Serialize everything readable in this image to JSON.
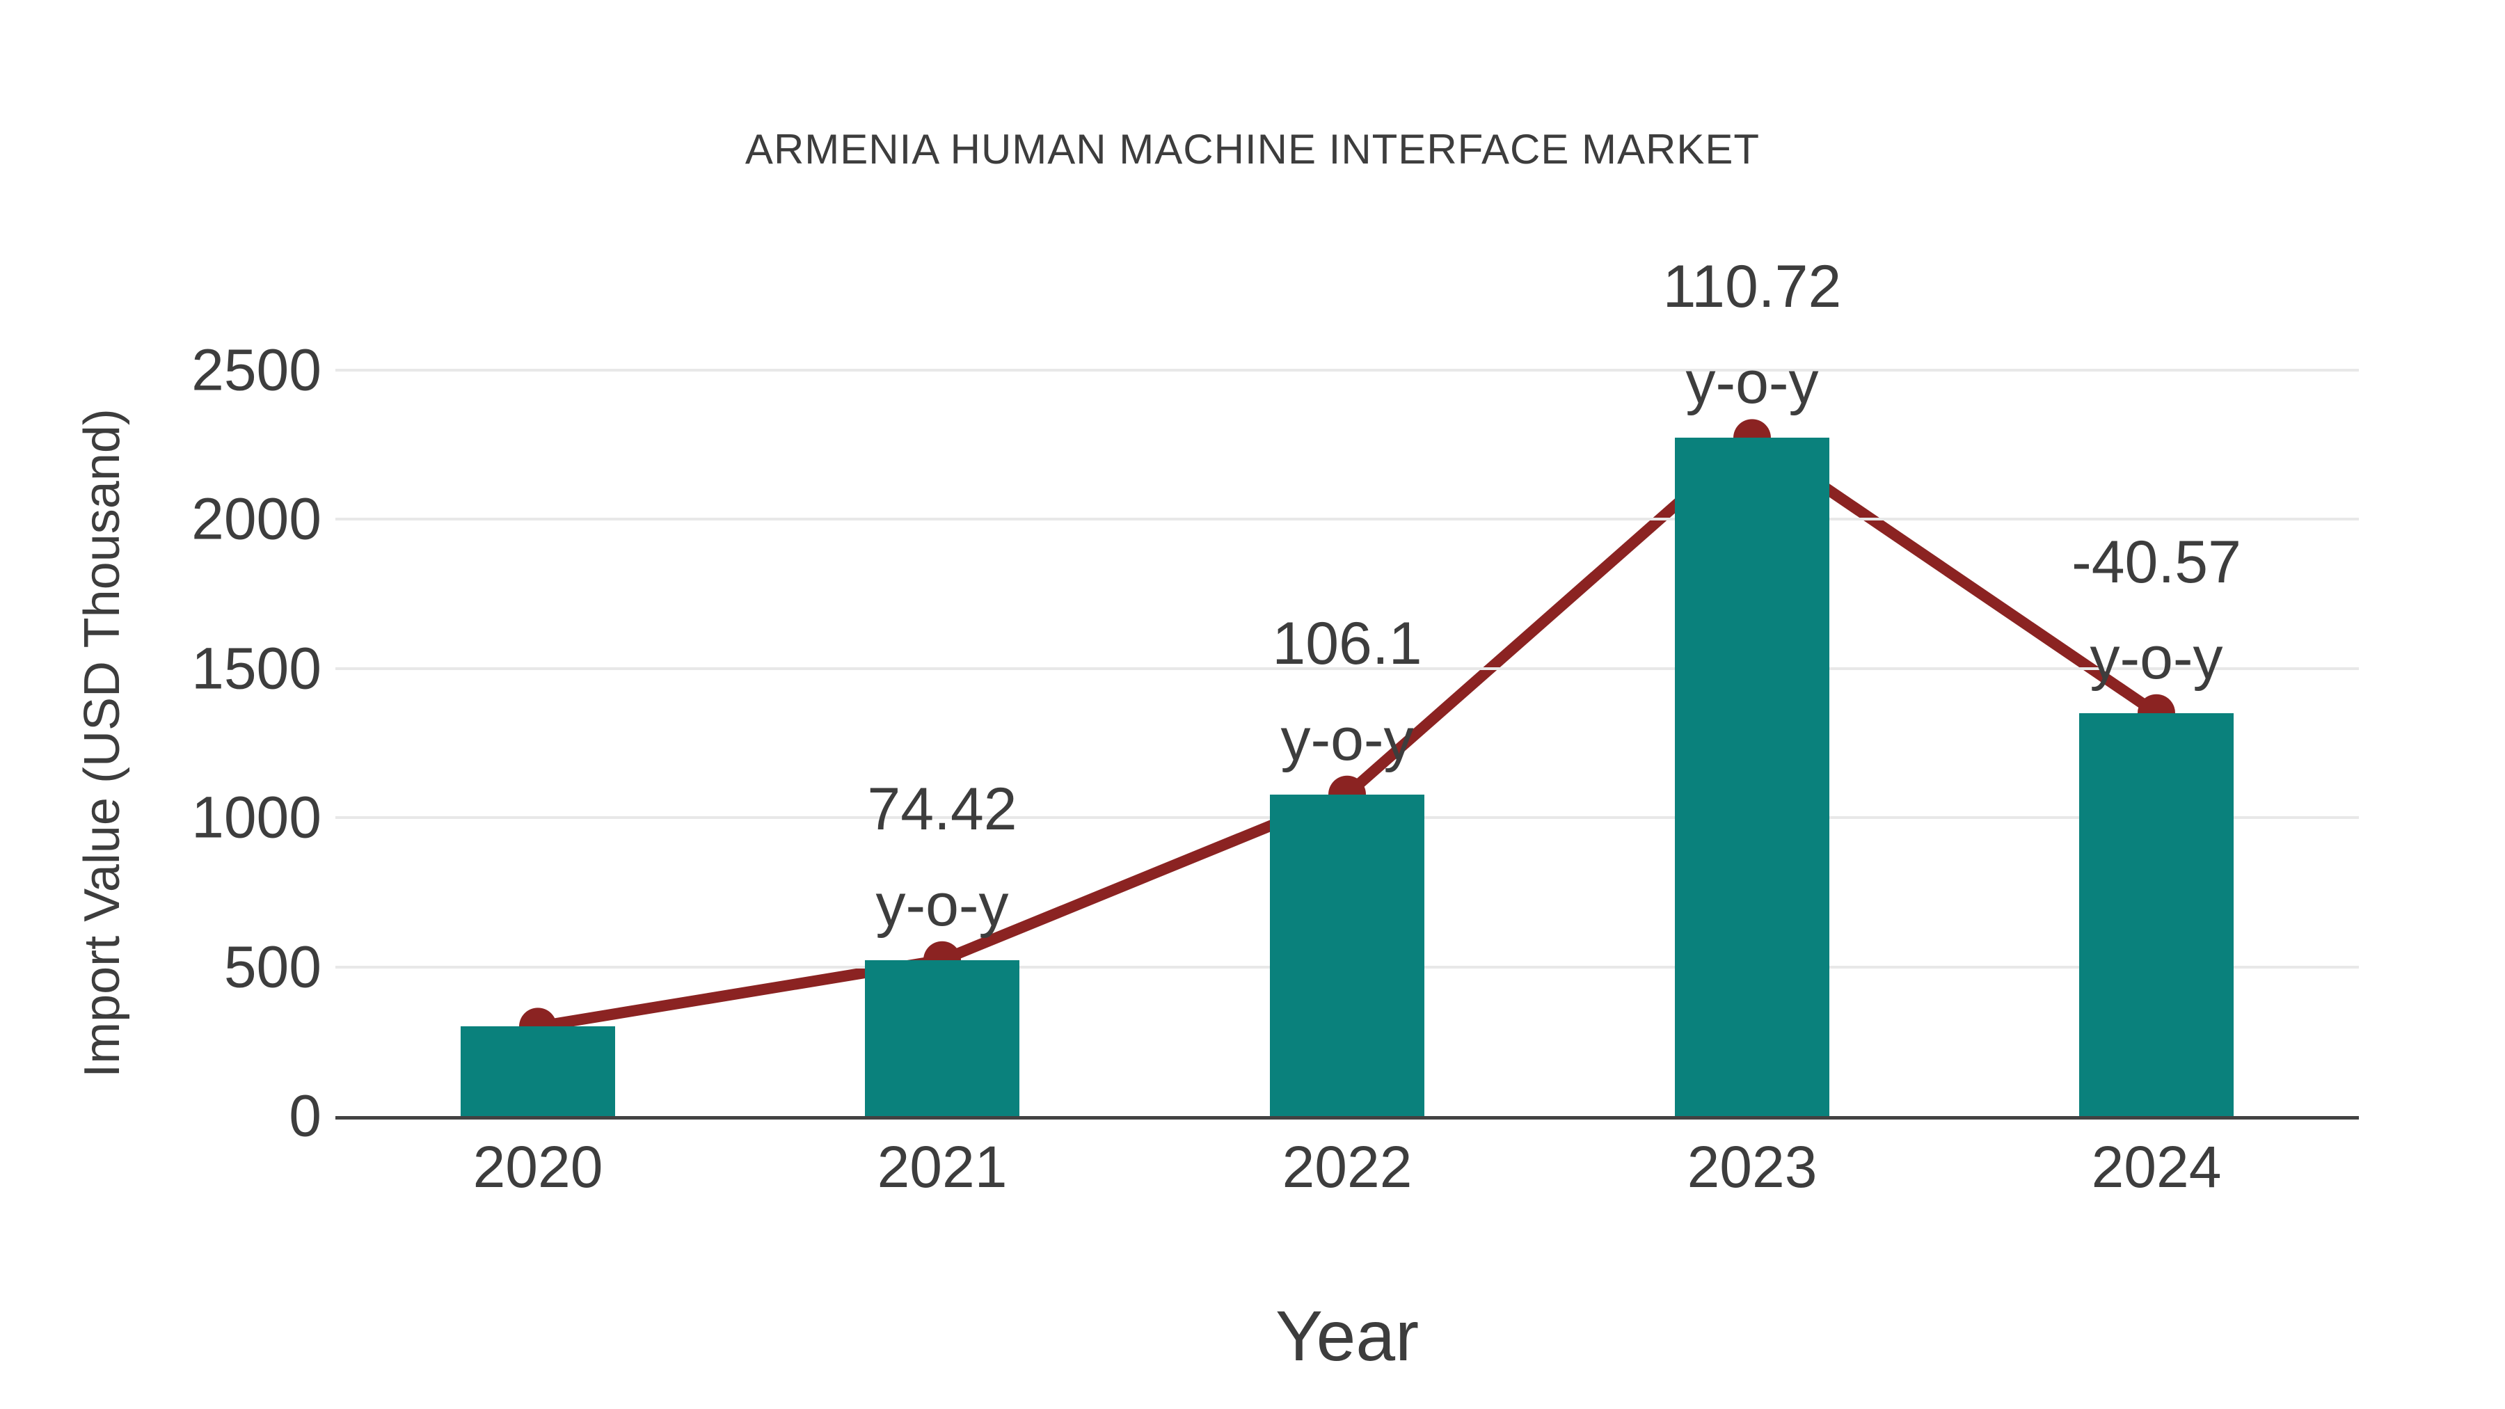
{
  "chart_data": {
    "type": "bar",
    "title": "ARMENIA HUMAN MACHINE INTERFACE MARKET",
    "xlabel": "Year",
    "ylabel": "Import Value (USD Thousand)",
    "categories": [
      "2020",
      "2021",
      "2022",
      "2023",
      "2024"
    ],
    "series": [
      {
        "name": "Import Value bars",
        "type": "bar",
        "color": "#0A817C",
        "values": [
          300,
          523,
          1078,
          2273,
          1351
        ]
      },
      {
        "name": "Import Value trend line",
        "type": "line",
        "color": "#8B2322",
        "values": [
          300,
          523,
          1078,
          2273,
          1351
        ]
      }
    ],
    "annotations": [
      {
        "category": "2021",
        "lines": [
          "74.42",
          "y-o-y"
        ]
      },
      {
        "category": "2022",
        "lines": [
          "106.1",
          "y-o-y"
        ]
      },
      {
        "category": "2023",
        "lines": [
          "110.72",
          "y-o-y"
        ]
      },
      {
        "category": "2024",
        "lines": [
          "-40.57",
          "y-o-y"
        ]
      }
    ],
    "yticks": [
      0,
      500,
      1000,
      1500,
      2000,
      2500
    ],
    "ylim": [
      0,
      2500
    ],
    "grid": true,
    "legend_position": "none",
    "colors": {
      "bar": "#0A817C",
      "line": "#8B2322",
      "marker": "#8B2322",
      "gridline": "#E8E8E8",
      "axis_line": "#424242",
      "text": "#3D3D3D",
      "background": "#FFFFFF"
    }
  }
}
